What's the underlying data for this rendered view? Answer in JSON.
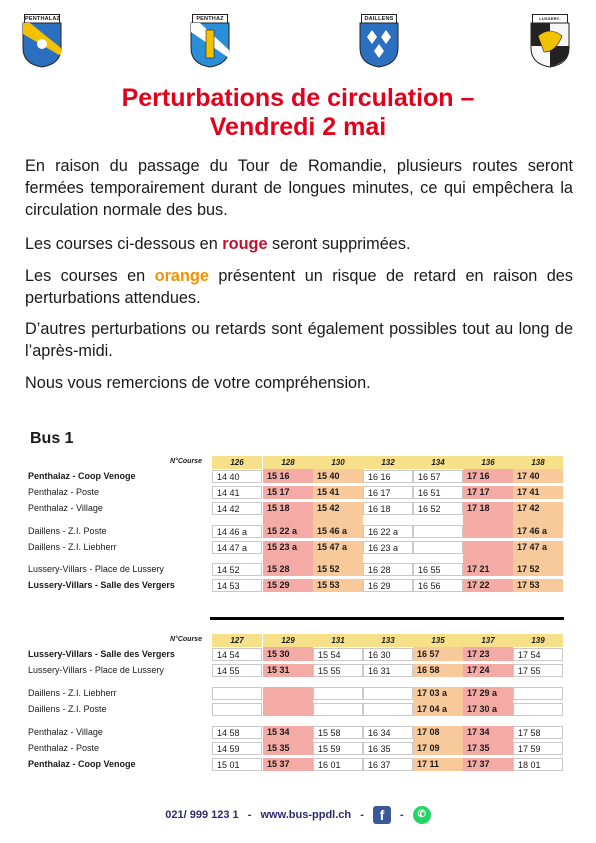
{
  "crests": [
    {
      "label": "PENTHALAZ",
      "kind": "penthalaz1"
    },
    {
      "label": "PENTHAZ",
      "kind": "penthaz"
    },
    {
      "label": "DAILLENS",
      "kind": "daillens"
    },
    {
      "label": "LUSSERY-VILLARS",
      "kind": "lussery"
    }
  ],
  "title_line1": "Perturbations de circulation –",
  "title_line2": "Vendredi 2 mai",
  "paragraphs": {
    "p1": "En raison du passage du Tour de Romandie, plusieurs routes seront fermées temporairement durant de longues minutes, ce qui empêchera la circulation normale des bus.",
    "p2_before": "Les courses ci-dessous en ",
    "p2_red": "rouge",
    "p2_after": " seront supprimées.",
    "p3_before": "Les courses en ",
    "p3_orange": "orange",
    "p3_after": " présentent un risque de retard en raison des perturbations attendues.",
    "p4": "D’autres perturbations ou retards sont également possibles tout au long de l’après-midi.",
    "p5": "Nous vous remercions de votre compréhension."
  },
  "bus_title": "Bus 1",
  "course_label": "N°Course",
  "colors": {
    "red": "#f4aaa5",
    "orange": "#f8c99b",
    "header": "#f7e08a",
    "title": "#e2001a"
  },
  "table1": {
    "courses": [
      "126",
      "128",
      "130",
      "132",
      "134",
      "136",
      "138"
    ],
    "column_status": [
      "w",
      "r",
      "o",
      "w",
      "w",
      "r",
      "o"
    ],
    "rows": [
      {
        "stop": "Penthalaz - Coop Venoge",
        "bold": true,
        "times": [
          "14 40",
          "15 16",
          "15 40",
          "16 16",
          "16 57",
          "17 16",
          "17 40"
        ]
      },
      {
        "stop": "Penthalaz - Poste",
        "bold": false,
        "times": [
          "14 41",
          "15 17",
          "15 41",
          "16 17",
          "16 51",
          "17 17",
          "17 41"
        ]
      },
      {
        "stop": "Penthalaz - Village",
        "bold": false,
        "times": [
          "14 42",
          "15 18",
          "15 42",
          "16 18",
          "16 52",
          "17 18",
          "17 42"
        ]
      },
      {
        "stop": "Daillens - Z.I. Poste",
        "bold": false,
        "times": [
          "14 46 a",
          "15 22 a",
          "15 46 a",
          "16 22 a",
          "",
          "",
          "17 46 a"
        ]
      },
      {
        "stop": "Daillens - Z.I. Liebherr",
        "bold": false,
        "times": [
          "14 47 a",
          "15 23 a",
          "15 47 a",
          "16 23 a",
          "",
          "",
          "17 47 a"
        ]
      },
      {
        "stop": "Lussery-Villars - Place de Lussery",
        "bold": false,
        "times": [
          "14 52",
          "15 28",
          "15 52",
          "16 28",
          "16 55",
          "17 21",
          "17 52"
        ]
      },
      {
        "stop": "Lussery-Villars - Salle des Vergers",
        "bold": true,
        "times": [
          "14 53",
          "15 29",
          "15 53",
          "16 29",
          "16 56",
          "17 22",
          "17 53"
        ]
      }
    ]
  },
  "table2": {
    "courses": [
      "127",
      "129",
      "131",
      "133",
      "135",
      "137",
      "139"
    ],
    "column_status": [
      "w",
      "r",
      "w",
      "w",
      "o",
      "r",
      "w"
    ],
    "rows": [
      {
        "stop": "Lussery-Villars - Salle des Vergers",
        "bold": true,
        "times": [
          "14 54",
          "15 30",
          "15 54",
          "16 30",
          "16 57",
          "17 23",
          "17 54"
        ]
      },
      {
        "stop": "Lussery-Villars - Place de Lussery",
        "bold": false,
        "times": [
          "14 55",
          "15 31",
          "15 55",
          "16 31",
          "16 58",
          "17 24",
          "17 55"
        ]
      },
      {
        "stop": "Daillens - Z.I. Liebherr",
        "bold": false,
        "times": [
          "",
          "",
          "",
          "",
          "17 03 a",
          "17 29 a",
          ""
        ]
      },
      {
        "stop": "Daillens - Z.I. Poste",
        "bold": false,
        "times": [
          "",
          "",
          "",
          "",
          "17 04 a",
          "17 30 a",
          ""
        ]
      },
      {
        "stop": "Penthalaz - Village",
        "bold": false,
        "times": [
          "14 58",
          "15 34",
          "15 58",
          "16 34",
          "17 08",
          "17 34",
          "17 58"
        ]
      },
      {
        "stop": "Penthalaz - Poste",
        "bold": false,
        "times": [
          "14 59",
          "15 35",
          "15 59",
          "16 35",
          "17 09",
          "17 35",
          "17 59"
        ]
      },
      {
        "stop": "Penthalaz - Coop Venoge",
        "bold": true,
        "times": [
          "15 01",
          "15 37",
          "16 01",
          "16 37",
          "17 11",
          "17 37",
          "18 01"
        ]
      }
    ]
  },
  "footer": {
    "phone": "021/ 999 123 1",
    "sep": "-",
    "website": "www.bus-ppdl.ch",
    "facebook_icon": "facebook-icon",
    "whatsapp_icon": "whatsapp-icon"
  }
}
